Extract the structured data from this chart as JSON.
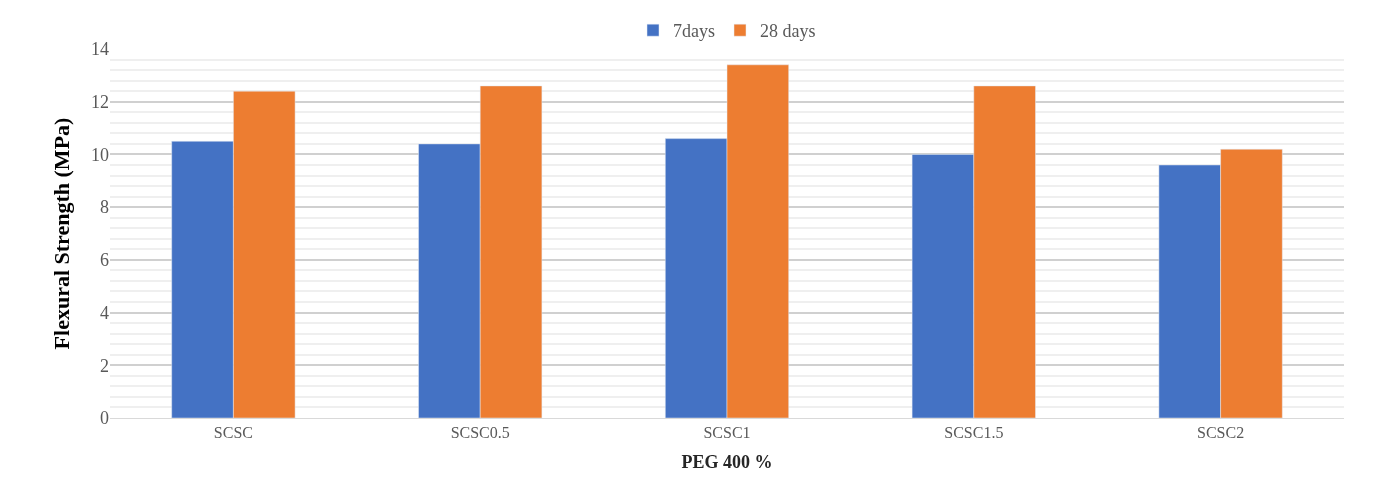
{
  "chart_data": {
    "type": "bar",
    "xlabel": "PEG 400 %",
    "ylabel": "Flexural Strength (MPa)",
    "categories": [
      "SCSC",
      "SCSC0.5",
      "SCSC1",
      "SCSC1.5",
      "SCSC2"
    ],
    "series": [
      {
        "name": "7days",
        "color": "#4472c4",
        "values": [
          10.5,
          10.4,
          10.6,
          10.0,
          9.6
        ]
      },
      {
        "name": "28 days",
        "color": "#ed7d31",
        "values": [
          12.4,
          12.6,
          13.4,
          12.6,
          10.2
        ]
      }
    ],
    "ylim": [
      0,
      14
    ],
    "yticks": [
      0,
      2,
      4,
      6,
      8,
      10,
      12,
      14
    ],
    "grid": "y",
    "legend": "top"
  }
}
